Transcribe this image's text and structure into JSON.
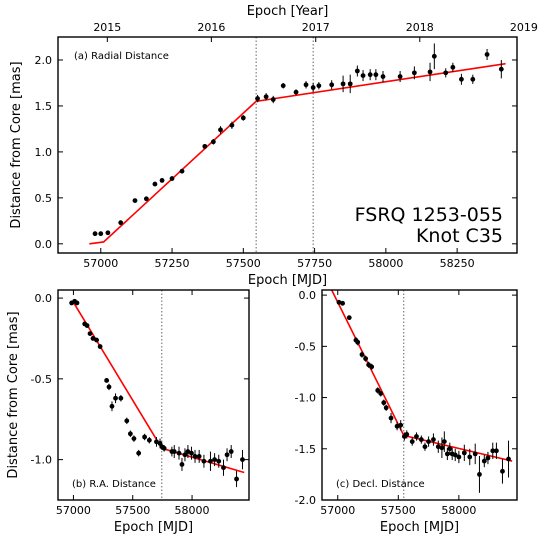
{
  "chart_data": [
    {
      "type": "scatter",
      "panel_label": "(a) Radial Distance",
      "source": "FSRQ 1253-055",
      "component": "Knot C35",
      "xlabel": "Epoch [MJD]",
      "ylabel": "Distance from Core [mas]",
      "top_xlabel": "Epoch [Year]",
      "xlim": [
        56850,
        58460
      ],
      "ylim": [
        -0.1,
        2.25
      ],
      "xticks": [
        57000,
        57250,
        57500,
        57750,
        58000,
        58250
      ],
      "yticks": [
        0.0,
        0.5,
        1.0,
        1.5,
        2.0
      ],
      "top_ticks": [
        {
          "label": "2015",
          "mjd": 57023
        },
        {
          "label": "2016",
          "mjd": 57388
        },
        {
          "label": "2017",
          "mjd": 57754
        },
        {
          "label": "2018",
          "mjd": 58119
        },
        {
          "label": "2019",
          "mjd": 58484
        }
      ],
      "vlines": [
        57545,
        57745
      ],
      "fit": {
        "x": [
          56960,
          57010,
          57545,
          58420
        ],
        "y": [
          0.0,
          0.02,
          1.55,
          1.96
        ]
      },
      "points": [
        {
          "x": 56980,
          "y": 0.11,
          "e": 0.02
        },
        {
          "x": 57000,
          "y": 0.11,
          "e": 0.02
        },
        {
          "x": 57025,
          "y": 0.12,
          "e": 0.02
        },
        {
          "x": 57070,
          "y": 0.23,
          "e": 0.02
        },
        {
          "x": 57120,
          "y": 0.47,
          "e": 0.02
        },
        {
          "x": 57160,
          "y": 0.49,
          "e": 0.02
        },
        {
          "x": 57190,
          "y": 0.65,
          "e": 0.02
        },
        {
          "x": 57215,
          "y": 0.69,
          "e": 0.02
        },
        {
          "x": 57250,
          "y": 0.71,
          "e": 0.02
        },
        {
          "x": 57285,
          "y": 0.79,
          "e": 0.02
        },
        {
          "x": 57365,
          "y": 1.06,
          "e": 0.02
        },
        {
          "x": 57395,
          "y": 1.11,
          "e": 0.03
        },
        {
          "x": 57420,
          "y": 1.24,
          "e": 0.04
        },
        {
          "x": 57460,
          "y": 1.29,
          "e": 0.04
        },
        {
          "x": 57500,
          "y": 1.37,
          "e": 0.03
        },
        {
          "x": 57550,
          "y": 1.58,
          "e": 0.04
        },
        {
          "x": 57580,
          "y": 1.6,
          "e": 0.04
        },
        {
          "x": 57605,
          "y": 1.57,
          "e": 0.04
        },
        {
          "x": 57640,
          "y": 1.72,
          "e": 0.03
        },
        {
          "x": 57685,
          "y": 1.65,
          "e": 0.03
        },
        {
          "x": 57720,
          "y": 1.73,
          "e": 0.04
        },
        {
          "x": 57745,
          "y": 1.7,
          "e": 0.05
        },
        {
          "x": 57765,
          "y": 1.72,
          "e": 0.04
        },
        {
          "x": 57810,
          "y": 1.73,
          "e": 0.05
        },
        {
          "x": 57850,
          "y": 1.74,
          "e": 0.09
        },
        {
          "x": 57875,
          "y": 1.74,
          "e": 0.1
        },
        {
          "x": 57900,
          "y": 1.88,
          "e": 0.06
        },
        {
          "x": 57920,
          "y": 1.83,
          "e": 0.06
        },
        {
          "x": 57945,
          "y": 1.84,
          "e": 0.06
        },
        {
          "x": 57965,
          "y": 1.84,
          "e": 0.06
        },
        {
          "x": 57990,
          "y": 1.82,
          "e": 0.06
        },
        {
          "x": 58050,
          "y": 1.82,
          "e": 0.06
        },
        {
          "x": 58100,
          "y": 1.86,
          "e": 0.07
        },
        {
          "x": 58155,
          "y": 1.87,
          "e": 0.1
        },
        {
          "x": 58170,
          "y": 2.04,
          "e": 0.14
        },
        {
          "x": 58210,
          "y": 1.86,
          "e": 0.05
        },
        {
          "x": 58235,
          "y": 1.92,
          "e": 0.05
        },
        {
          "x": 58265,
          "y": 1.79,
          "e": 0.06
        },
        {
          "x": 58305,
          "y": 1.79,
          "e": 0.05
        },
        {
          "x": 58355,
          "y": 2.06,
          "e": 0.06
        },
        {
          "x": 58405,
          "y": 1.9,
          "e": 0.1
        }
      ]
    },
    {
      "type": "scatter",
      "panel_label": "(b) R.A. Distance",
      "xlabel": "Epoch [MJD]",
      "ylabel": "Distance from Core [mas]",
      "xlim": [
        56870,
        58480
      ],
      "ylim": [
        -1.25,
        0.05
      ],
      "xticks": [
        57000,
        57500,
        58000
      ],
      "yticks": [
        0.0,
        -0.5,
        -1.0
      ],
      "vlines": [
        57745
      ],
      "fit": {
        "x": [
          56995,
          57745,
          58440
        ],
        "y": [
          -0.02,
          -0.93,
          -1.08
        ]
      },
      "points": [
        {
          "x": 56985,
          "y": -0.03,
          "e": 0.01
        },
        {
          "x": 57010,
          "y": -0.02,
          "e": 0.01
        },
        {
          "x": 57030,
          "y": -0.03,
          "e": 0.01
        },
        {
          "x": 57095,
          "y": -0.16,
          "e": 0.01
        },
        {
          "x": 57115,
          "y": -0.17,
          "e": 0.01
        },
        {
          "x": 57140,
          "y": -0.22,
          "e": 0.01
        },
        {
          "x": 57165,
          "y": -0.25,
          "e": 0.01
        },
        {
          "x": 57195,
          "y": -0.26,
          "e": 0.01
        },
        {
          "x": 57225,
          "y": -0.3,
          "e": 0.01
        },
        {
          "x": 57280,
          "y": -0.51,
          "e": 0.01
        },
        {
          "x": 57300,
          "y": -0.55,
          "e": 0.02
        },
        {
          "x": 57325,
          "y": -0.67,
          "e": 0.03
        },
        {
          "x": 57355,
          "y": -0.62,
          "e": 0.03
        },
        {
          "x": 57400,
          "y": -0.62,
          "e": 0.02
        },
        {
          "x": 57450,
          "y": -0.76,
          "e": 0.02
        },
        {
          "x": 57480,
          "y": -0.84,
          "e": 0.02
        },
        {
          "x": 57510,
          "y": -0.87,
          "e": 0.02
        },
        {
          "x": 57550,
          "y": -0.96,
          "e": 0.02
        },
        {
          "x": 57600,
          "y": -0.86,
          "e": 0.02
        },
        {
          "x": 57640,
          "y": -0.88,
          "e": 0.02
        },
        {
          "x": 57700,
          "y": -0.89,
          "e": 0.03
        },
        {
          "x": 57730,
          "y": -0.9,
          "e": 0.03
        },
        {
          "x": 57745,
          "y": -0.92,
          "e": 0.02
        },
        {
          "x": 57765,
          "y": -0.93,
          "e": 0.02
        },
        {
          "x": 57830,
          "y": -0.95,
          "e": 0.03
        },
        {
          "x": 57850,
          "y": -0.95,
          "e": 0.04
        },
        {
          "x": 57890,
          "y": -0.96,
          "e": 0.04
        },
        {
          "x": 57915,
          "y": -1.03,
          "e": 0.04
        },
        {
          "x": 57940,
          "y": -0.97,
          "e": 0.04
        },
        {
          "x": 57965,
          "y": -0.95,
          "e": 0.04
        },
        {
          "x": 57995,
          "y": -0.96,
          "e": 0.04
        },
        {
          "x": 58025,
          "y": -0.98,
          "e": 0.04
        },
        {
          "x": 58060,
          "y": -0.98,
          "e": 0.04
        },
        {
          "x": 58100,
          "y": -1.01,
          "e": 0.04
        },
        {
          "x": 58155,
          "y": -1.01,
          "e": 0.06
        },
        {
          "x": 58190,
          "y": -1.0,
          "e": 0.04
        },
        {
          "x": 58225,
          "y": -1.01,
          "e": 0.04
        },
        {
          "x": 58265,
          "y": -1.05,
          "e": 0.05
        },
        {
          "x": 58295,
          "y": -0.97,
          "e": 0.04
        },
        {
          "x": 58330,
          "y": -0.95,
          "e": 0.04
        },
        {
          "x": 58375,
          "y": -1.12,
          "e": 0.05
        },
        {
          "x": 58425,
          "y": -1.0,
          "e": 0.06
        }
      ]
    },
    {
      "type": "scatter",
      "panel_label": "(c) Decl. Distance",
      "xlabel": "Epoch [MJD]",
      "xlim": [
        56870,
        58480
      ],
      "ylim": [
        -2.0,
        0.05
      ],
      "xticks": [
        57000,
        57500,
        58000
      ],
      "yticks": [
        0.0,
        -0.5,
        -1.0,
        -1.5,
        -2.0
      ],
      "vlines": [
        57545
      ],
      "fit": {
        "x": [
          56950,
          57545,
          58440
        ],
        "y": [
          0.05,
          -1.37,
          -1.62
        ]
      },
      "points": [
        {
          "x": 57010,
          "y": -0.07,
          "e": 0.02
        },
        {
          "x": 57040,
          "y": -0.08,
          "e": 0.02
        },
        {
          "x": 57095,
          "y": -0.22,
          "e": 0.02
        },
        {
          "x": 57150,
          "y": -0.44,
          "e": 0.03
        },
        {
          "x": 57165,
          "y": -0.46,
          "e": 0.03
        },
        {
          "x": 57200,
          "y": -0.58,
          "e": 0.03
        },
        {
          "x": 57230,
          "y": -0.62,
          "e": 0.03
        },
        {
          "x": 57255,
          "y": -0.68,
          "e": 0.03
        },
        {
          "x": 57280,
          "y": -0.7,
          "e": 0.03
        },
        {
          "x": 57330,
          "y": -0.93,
          "e": 0.03
        },
        {
          "x": 57355,
          "y": -0.96,
          "e": 0.03
        },
        {
          "x": 57380,
          "y": -1.05,
          "e": 0.03
        },
        {
          "x": 57400,
          "y": -1.1,
          "e": 0.03
        },
        {
          "x": 57440,
          "y": -1.2,
          "e": 0.05
        },
        {
          "x": 57490,
          "y": -1.28,
          "e": 0.04
        },
        {
          "x": 57520,
          "y": -1.27,
          "e": 0.05
        },
        {
          "x": 57550,
          "y": -1.38,
          "e": 0.04
        },
        {
          "x": 57570,
          "y": -1.36,
          "e": 0.04
        },
        {
          "x": 57615,
          "y": -1.43,
          "e": 0.04
        },
        {
          "x": 57650,
          "y": -1.38,
          "e": 0.04
        },
        {
          "x": 57690,
          "y": -1.41,
          "e": 0.04
        },
        {
          "x": 57720,
          "y": -1.48,
          "e": 0.04
        },
        {
          "x": 57750,
          "y": -1.43,
          "e": 0.05
        },
        {
          "x": 57790,
          "y": -1.41,
          "e": 0.06
        },
        {
          "x": 57830,
          "y": -1.48,
          "e": 0.06
        },
        {
          "x": 57860,
          "y": -1.49,
          "e": 0.1
        },
        {
          "x": 57880,
          "y": -1.43,
          "e": 0.1
        },
        {
          "x": 57905,
          "y": -1.55,
          "e": 0.06
        },
        {
          "x": 57925,
          "y": -1.5,
          "e": 0.06
        },
        {
          "x": 57945,
          "y": -1.55,
          "e": 0.06
        },
        {
          "x": 57970,
          "y": -1.56,
          "e": 0.06
        },
        {
          "x": 58000,
          "y": -1.58,
          "e": 0.06
        },
        {
          "x": 58045,
          "y": -1.54,
          "e": 0.08
        },
        {
          "x": 58090,
          "y": -1.58,
          "e": 0.08
        },
        {
          "x": 58135,
          "y": -1.55,
          "e": 0.1
        },
        {
          "x": 58170,
          "y": -1.75,
          "e": 0.18
        },
        {
          "x": 58210,
          "y": -1.62,
          "e": 0.06
        },
        {
          "x": 58240,
          "y": -1.59,
          "e": 0.06
        },
        {
          "x": 58280,
          "y": -1.52,
          "e": 0.08
        },
        {
          "x": 58310,
          "y": -1.52,
          "e": 0.08
        },
        {
          "x": 58360,
          "y": -1.72,
          "e": 0.12
        },
        {
          "x": 58410,
          "y": -1.6,
          "e": 0.18
        }
      ]
    }
  ]
}
